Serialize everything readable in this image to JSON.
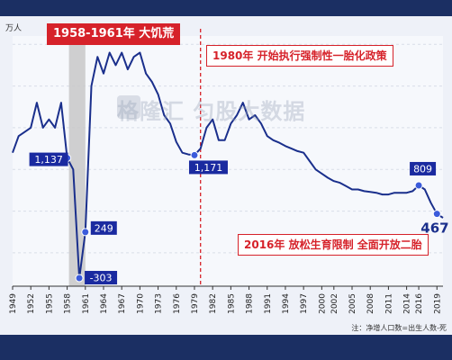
{
  "unit": "万人",
  "annotations": {
    "famine": "1958-1961年 大饥荒",
    "policy_1980": "1980年 开始执行强制性一胎化政策",
    "policy_2016": "2016年 放松生育限制 全面开放二胎"
  },
  "watermark": "格隆汇  匀股大数据",
  "note": "注：净增人口数=出生人数-死",
  "colors": {
    "line": "#1a2f8c",
    "label_bg": "#1a2aa0",
    "accent": "#d6222a",
    "famine_band": "#c8c8c8",
    "footer": "#1b2f63"
  },
  "chart_data": {
    "type": "line",
    "x_ticks": [
      1949,
      1952,
      1955,
      1958,
      1961,
      1964,
      1967,
      1970,
      1973,
      1976,
      1979,
      1982,
      1985,
      1988,
      1991,
      1994,
      1997,
      2000,
      2002,
      2005,
      2008,
      2011,
      2014,
      2016,
      2019
    ],
    "ylim": [
      -400,
      2600
    ],
    "highlight_band": [
      1958,
      1961
    ],
    "policy_line_year": 1980,
    "series": [
      {
        "x": [
          1949,
          1950,
          1951,
          1952,
          1953,
          1954,
          1955,
          1956,
          1957,
          1958,
          1959,
          1960,
          1961,
          1962,
          1963,
          1964,
          1965,
          1966,
          1967,
          1968,
          1969,
          1970,
          1971,
          1972,
          1973,
          1974,
          1975,
          1976,
          1977,
          1978,
          1979,
          1980,
          1981,
          1982,
          1983,
          1984,
          1985,
          1986,
          1987,
          1988,
          1989,
          1990,
          1991,
          1992,
          1993,
          1994,
          1995,
          1996,
          1997,
          1998,
          1999,
          2000,
          2001,
          2002,
          2003,
          2004,
          2005,
          2006,
          2007,
          2008,
          2009,
          2010,
          2011,
          2012,
          2013,
          2014,
          2015,
          2016,
          2017,
          2018,
          2019,
          2020
        ],
        "values": [
          1200,
          1400,
          1450,
          1500,
          1800,
          1500,
          1600,
          1500,
          1800,
          1137,
          1000,
          -303,
          249,
          2000,
          2350,
          2150,
          2400,
          2250,
          2400,
          2200,
          2350,
          2400,
          2150,
          2050,
          1900,
          1650,
          1550,
          1330,
          1200,
          1180,
          1171,
          1250,
          1500,
          1600,
          1350,
          1350,
          1550,
          1650,
          1800,
          1600,
          1650,
          1550,
          1400,
          1350,
          1320,
          1280,
          1250,
          1220,
          1200,
          1100,
          1000,
          950,
          900,
          860,
          840,
          800,
          760,
          760,
          740,
          730,
          720,
          700,
          700,
          720,
          720,
          720,
          740,
          809,
          760,
          600,
          467,
          420
        ]
      }
    ],
    "data_labels": [
      {
        "x": 1958,
        "y": 1137,
        "text": "1,137"
      },
      {
        "x": 1960,
        "y": -303,
        "text": "-303"
      },
      {
        "x": 1961,
        "y": 249,
        "text": "249"
      },
      {
        "x": 1979,
        "y": 1171,
        "text": "1,171"
      },
      {
        "x": 2016,
        "y": 809,
        "text": "809"
      },
      {
        "x": 2019,
        "y": 467,
        "text": "467"
      }
    ]
  }
}
